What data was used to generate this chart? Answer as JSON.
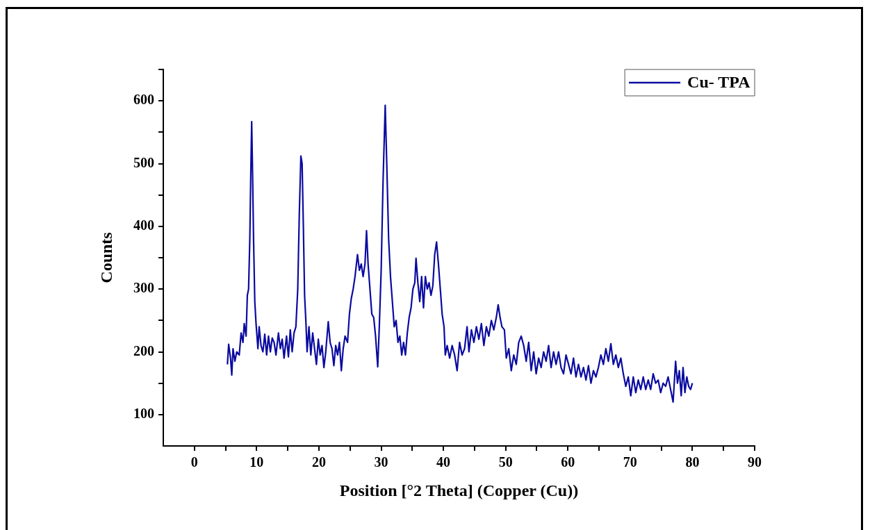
{
  "chart_data": {
    "type": "line",
    "xlabel": "Position [°2 Theta] (Copper (Cu))",
    "ylabel": "Counts",
    "xlim": [
      -5,
      90
    ],
    "xticks": [
      0,
      {
        "value": 5,
        "label": null
      },
      10,
      {
        "value": 15,
        "label": null
      },
      20,
      {
        "value": 25,
        "label": null
      },
      30,
      {
        "value": 35,
        "label": null
      },
      40,
      {
        "value": 45,
        "label": null
      },
      50,
      {
        "value": 55,
        "label": null
      },
      60,
      {
        "value": 65,
        "label": null
      },
      70,
      {
        "value": 75,
        "label": null
      },
      80,
      {
        "value": 85,
        "label": null
      },
      90
    ],
    "ylim": [
      50,
      650
    ],
    "yticks": [
      100,
      {
        "value": 150,
        "label": null
      },
      200,
      {
        "value": 250,
        "label": null
      },
      300,
      {
        "value": 350,
        "label": null
      },
      400,
      {
        "value": 450,
        "label": null
      },
      500,
      {
        "value": 550,
        "label": null
      },
      600,
      {
        "value": 650,
        "label": null
      }
    ],
    "grid": false,
    "legend": "top right",
    "marker": "none",
    "line_style": "solid",
    "series": [
      {
        "name": "Cu- TPA",
        "color": "#0a0aa0",
        "x": [
          5.3,
          5.5,
          5.8,
          6.0,
          6.2,
          6.5,
          6.8,
          7.2,
          7.5,
          7.8,
          8.0,
          8.3,
          8.5,
          8.7,
          8.9,
          9.05,
          9.2,
          9.35,
          9.5,
          9.7,
          9.9,
          10.2,
          10.4,
          10.7,
          11.0,
          11.3,
          11.6,
          11.9,
          12.2,
          12.5,
          12.8,
          13.1,
          13.5,
          13.8,
          14.1,
          14.4,
          14.8,
          15.1,
          15.4,
          15.7,
          16.0,
          16.3,
          16.6,
          16.85,
          17.1,
          17.3,
          17.5,
          17.7,
          17.9,
          18.1,
          18.4,
          18.7,
          19.0,
          19.3,
          19.6,
          19.9,
          20.2,
          20.5,
          20.8,
          21.1,
          21.5,
          21.8,
          22.1,
          22.4,
          22.7,
          23.0,
          23.3,
          23.6,
          23.9,
          24.2,
          24.6,
          24.9,
          25.2,
          25.5,
          25.8,
          26.2,
          26.5,
          26.8,
          27.1,
          27.4,
          27.65,
          27.9,
          28.2,
          28.5,
          28.8,
          29.1,
          29.45,
          29.7,
          30.0,
          30.3,
          30.65,
          30.9,
          31.2,
          31.5,
          31.8,
          32.1,
          32.4,
          32.7,
          33.0,
          33.3,
          33.6,
          33.9,
          34.2,
          34.5,
          34.8,
          35.1,
          35.4,
          35.6,
          35.9,
          36.2,
          36.5,
          36.8,
          37.1,
          37.4,
          37.7,
          38.0,
          38.3,
          38.6,
          38.9,
          39.2,
          39.5,
          39.8,
          40.1,
          40.3,
          40.6,
          41.0,
          41.4,
          41.8,
          42.2,
          42.6,
          43.0,
          43.4,
          43.8,
          44.1,
          44.5,
          44.9,
          45.3,
          45.7,
          46.1,
          46.5,
          46.9,
          47.3,
          47.7,
          48.1,
          48.5,
          48.8,
          49.1,
          49.4,
          49.8,
          50.1,
          50.5,
          50.9,
          51.3,
          51.7,
          52.1,
          52.5,
          52.9,
          53.3,
          53.7,
          54.1,
          54.5,
          54.9,
          55.3,
          55.7,
          56.1,
          56.5,
          56.9,
          57.3,
          57.7,
          58.1,
          58.5,
          58.9,
          59.3,
          59.7,
          60.1,
          60.5,
          60.9,
          61.3,
          61.7,
          62.1,
          62.5,
          62.9,
          63.3,
          63.7,
          64.1,
          64.5,
          64.9,
          65.3,
          65.7,
          66.1,
          66.5,
          66.9,
          67.3,
          67.7,
          68.1,
          68.5,
          68.9,
          69.3,
          69.7,
          70.1,
          70.5,
          70.9,
          71.3,
          71.7,
          72.1,
          72.5,
          72.9,
          73.3,
          73.7,
          74.1,
          74.5,
          74.9,
          75.3,
          75.7,
          76.1,
          76.5,
          76.9,
          77.3,
          77.6,
          77.9,
          78.2,
          78.5,
          78.8,
          79.1,
          79.4,
          79.7,
          80.0
        ],
        "values": [
          180,
          212,
          190,
          163,
          205,
          185,
          200,
          195,
          230,
          215,
          245,
          225,
          290,
          300,
          380,
          480,
          567,
          480,
          380,
          280,
          245,
          205,
          240,
          210,
          200,
          228,
          195,
          225,
          200,
          222,
          215,
          195,
          230,
          205,
          220,
          190,
          225,
          192,
          235,
          200,
          230,
          240,
          300,
          420,
          512,
          500,
          400,
          290,
          250,
          200,
          240,
          195,
          230,
          205,
          180,
          220,
          195,
          210,
          175,
          200,
          248,
          215,
          205,
          178,
          210,
          195,
          215,
          170,
          205,
          225,
          215,
          260,
          285,
          300,
          320,
          355,
          330,
          340,
          320,
          340,
          393,
          340,
          300,
          260,
          255,
          225,
          176,
          240,
          330,
          470,
          593,
          500,
          380,
          320,
          280,
          240,
          250,
          215,
          225,
          195,
          215,
          195,
          230,
          255,
          270,
          300,
          310,
          349,
          310,
          280,
          320,
          270,
          320,
          300,
          310,
          290,
          305,
          355,
          375,
          340,
          300,
          260,
          240,
          195,
          210,
          190,
          210,
          195,
          170,
          215,
          195,
          205,
          240,
          200,
          235,
          215,
          240,
          220,
          245,
          210,
          240,
          225,
          250,
          235,
          255,
          275,
          255,
          240,
          235,
          190,
          205,
          170,
          195,
          180,
          215,
          225,
          210,
          185,
          215,
          170,
          200,
          165,
          190,
          175,
          200,
          185,
          210,
          175,
          200,
          180,
          200,
          175,
          165,
          195,
          180,
          165,
          190,
          160,
          180,
          160,
          175,
          155,
          178,
          150,
          170,
          160,
          175,
          195,
          180,
          205,
          185,
          213,
          180,
          195,
          175,
          190,
          165,
          145,
          160,
          130,
          160,
          135,
          155,
          140,
          160,
          140,
          155,
          140,
          165,
          150,
          155,
          135,
          150,
          145,
          160,
          140,
          120,
          185,
          150,
          170,
          130,
          175,
          135,
          160,
          145,
          140,
          150
        ]
      }
    ]
  }
}
